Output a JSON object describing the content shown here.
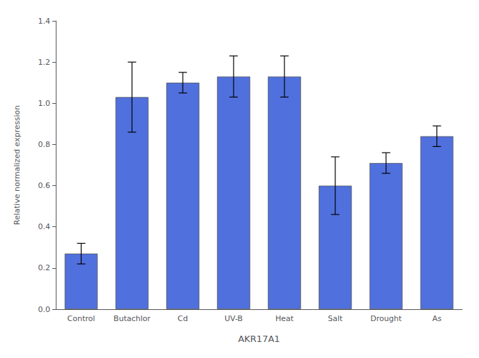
{
  "chart_data": {
    "type": "bar",
    "categories": [
      "Control",
      "Butachlor",
      "Cd",
      "UV-B",
      "Heat",
      "Salt",
      "Drought",
      "As"
    ],
    "values": [
      0.27,
      1.03,
      1.1,
      1.13,
      1.13,
      0.6,
      0.71,
      0.84
    ],
    "errors": [
      0.05,
      0.17,
      0.05,
      0.1,
      0.1,
      0.14,
      0.05,
      0.05
    ],
    "xlabel": "AKR17A1",
    "ylabel": "Relative normalized expression",
    "ylim": [
      0.0,
      1.4
    ],
    "yticks": [
      {
        "value": 0.0,
        "label": "0.0"
      },
      0.2,
      0.4,
      0.6,
      0.8,
      {
        "value": 1.0,
        "label": "1.0"
      },
      1.2,
      1.4
    ],
    "grid": false
  }
}
